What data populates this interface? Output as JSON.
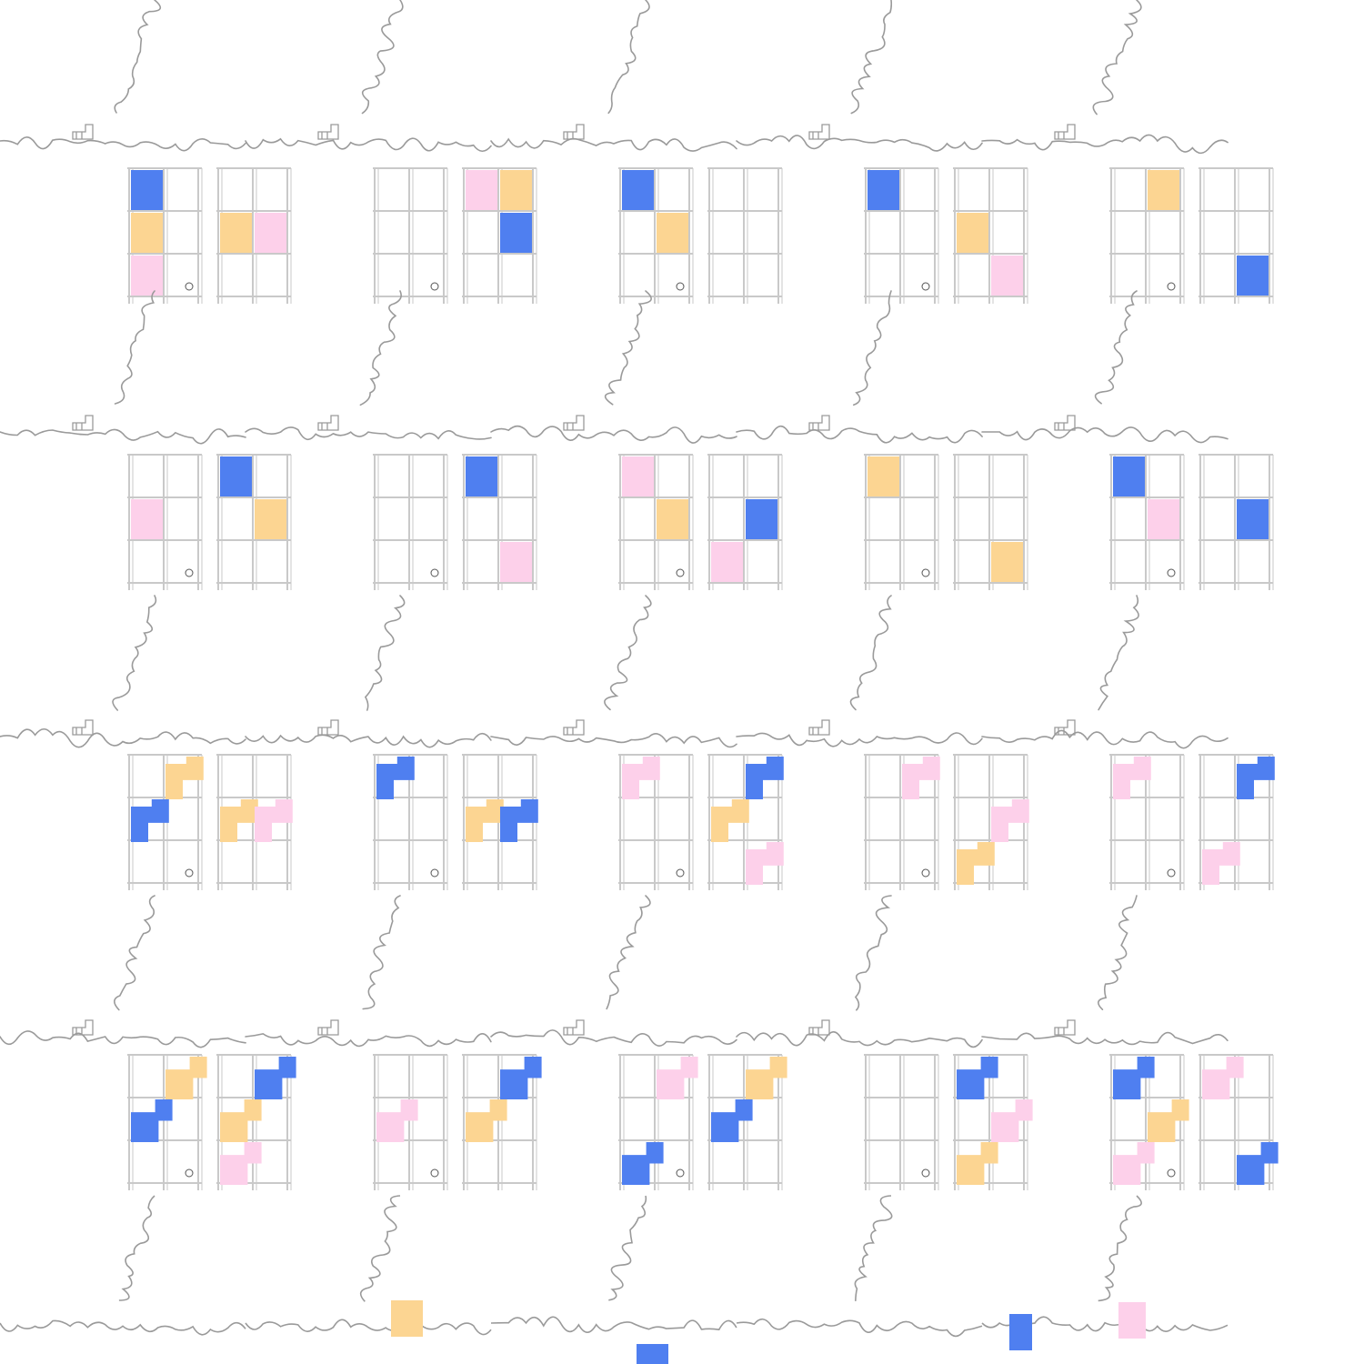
{
  "pattern": {
    "description_visible_text": "",
    "colors": {
      "background": "#ffffff",
      "line": "#9a9a9a",
      "grid_line": "#c9c9c9",
      "blue": "#4f7ff0",
      "orange": "#fcd592",
      "pink": "#fdd0ea"
    },
    "rows": [
      {
        "variant": "squares",
        "tiles": [
          {
            "left": [
              [
                "blue",
                "",
                ""
              ],
              [
                "orange",
                "",
                ""
              ],
              [
                "pink",
                "",
                ""
              ]
            ],
            "right": [
              [
                "",
                "",
                ""
              ],
              [
                "orange",
                "pink",
                ""
              ],
              [
                "",
                "",
                ""
              ]
            ]
          },
          {
            "left": [
              [
                "",
                "",
                ""
              ],
              [
                "",
                "",
                ""
              ],
              [
                "",
                "",
                ""
              ]
            ],
            "right": [
              [
                "pink",
                "orange",
                ""
              ],
              [
                "",
                "blue",
                ""
              ],
              [
                "",
                "",
                ""
              ]
            ]
          },
          {
            "left": [
              [
                "blue",
                "",
                ""
              ],
              [
                "",
                "orange",
                ""
              ],
              [
                "",
                "",
                ""
              ]
            ],
            "right": [
              [
                "",
                "",
                ""
              ],
              [
                "",
                "",
                ""
              ],
              [
                "",
                "",
                ""
              ]
            ]
          },
          {
            "left": [
              [
                "blue",
                "",
                ""
              ],
              [
                "",
                "",
                ""
              ],
              [
                "",
                "",
                ""
              ]
            ],
            "right": [
              [
                "",
                "",
                ""
              ],
              [
                "orange",
                "",
                ""
              ],
              [
                "",
                "pink",
                ""
              ]
            ]
          },
          {
            "left": [
              [
                "",
                "orange",
                ""
              ],
              [
                "",
                "",
                ""
              ],
              [
                "",
                "",
                ""
              ]
            ],
            "right": [
              [
                "",
                "",
                ""
              ],
              [
                "",
                "",
                ""
              ],
              [
                "",
                "blue",
                ""
              ]
            ]
          }
        ]
      },
      {
        "variant": "squares",
        "tiles": [
          {
            "left": [
              [
                "",
                "",
                ""
              ],
              [
                "pink",
                "",
                ""
              ],
              [
                "",
                "",
                ""
              ]
            ],
            "right": [
              [
                "blue",
                "",
                ""
              ],
              [
                "",
                "orange",
                ""
              ],
              [
                "",
                "",
                ""
              ]
            ]
          },
          {
            "left": [
              [
                "",
                "",
                ""
              ],
              [
                "",
                "",
                ""
              ],
              [
                "",
                "",
                ""
              ]
            ],
            "right": [
              [
                "blue",
                "",
                ""
              ],
              [
                "",
                "",
                ""
              ],
              [
                "",
                "pink",
                ""
              ]
            ]
          },
          {
            "left": [
              [
                "pink",
                "",
                ""
              ],
              [
                "",
                "orange",
                ""
              ],
              [
                "",
                "",
                ""
              ]
            ],
            "right": [
              [
                "",
                "",
                ""
              ],
              [
                "",
                "blue",
                ""
              ],
              [
                "pink",
                "",
                ""
              ]
            ]
          },
          {
            "left": [
              [
                "orange",
                "",
                ""
              ],
              [
                "",
                "",
                ""
              ],
              [
                "",
                "",
                ""
              ]
            ],
            "right": [
              [
                "",
                "",
                ""
              ],
              [
                "",
                "",
                ""
              ],
              [
                "",
                "orange",
                ""
              ]
            ]
          },
          {
            "left": [
              [
                "blue",
                "",
                ""
              ],
              [
                "",
                "pink",
                ""
              ],
              [
                "",
                "",
                ""
              ]
            ],
            "right": [
              [
                "",
                "",
                ""
              ],
              [
                "",
                "blue",
                ""
              ],
              [
                "",
                "",
                ""
              ]
            ]
          }
        ]
      },
      {
        "variant": "zigzag",
        "tiles": [
          {
            "left": [
              [
                "",
                "orange",
                ""
              ],
              [
                "blue",
                "",
                ""
              ],
              [
                "",
                "",
                ""
              ]
            ],
            "right": [
              [
                "",
                "",
                ""
              ],
              [
                "orange",
                "pink",
                ""
              ],
              [
                "",
                "",
                ""
              ]
            ]
          },
          {
            "left": [
              [
                "blue",
                "",
                ""
              ],
              [
                "",
                "",
                ""
              ],
              [
                "",
                "",
                ""
              ]
            ],
            "right": [
              [
                "",
                "",
                ""
              ],
              [
                "orange",
                "blue",
                ""
              ],
              [
                "",
                "",
                ""
              ]
            ]
          },
          {
            "left": [
              [
                "pink",
                "",
                ""
              ],
              [
                "",
                "",
                ""
              ],
              [
                "",
                "",
                ""
              ]
            ],
            "right": [
              [
                "",
                "blue",
                ""
              ],
              [
                "orange",
                "",
                ""
              ],
              [
                "",
                "pink",
                ""
              ]
            ]
          },
          {
            "left": [
              [
                "",
                "pink",
                ""
              ],
              [
                "",
                "",
                ""
              ],
              [
                "",
                "",
                ""
              ]
            ],
            "right": [
              [
                "",
                "",
                ""
              ],
              [
                "",
                "pink",
                ""
              ],
              [
                "orange",
                "",
                ""
              ]
            ]
          },
          {
            "left": [
              [
                "pink",
                "",
                ""
              ],
              [
                "",
                "",
                ""
              ],
              [
                "",
                "",
                ""
              ]
            ],
            "right": [
              [
                "",
                "blue",
                ""
              ],
              [
                "",
                "",
                ""
              ],
              [
                "pink",
                "",
                ""
              ]
            ]
          }
        ]
      },
      {
        "variant": "stairs",
        "tiles": [
          {
            "left": [
              [
                "",
                "orange",
                ""
              ],
              [
                "blue",
                "",
                ""
              ],
              [
                "",
                "",
                ""
              ]
            ],
            "right": [
              [
                "",
                "blue",
                ""
              ],
              [
                "orange",
                "",
                ""
              ],
              [
                "pink",
                "",
                ""
              ]
            ]
          },
          {
            "left": [
              [
                "",
                "",
                ""
              ],
              [
                "pink",
                "",
                ""
              ],
              [
                "",
                "",
                ""
              ]
            ],
            "right": [
              [
                "",
                "blue",
                ""
              ],
              [
                "orange",
                "",
                ""
              ],
              [
                "",
                "",
                ""
              ]
            ]
          },
          {
            "left": [
              [
                "",
                "pink",
                ""
              ],
              [
                "",
                "",
                ""
              ],
              [
                "blue",
                "",
                ""
              ]
            ],
            "right": [
              [
                "",
                "orange",
                ""
              ],
              [
                "blue",
                "",
                ""
              ],
              [
                "",
                "",
                ""
              ]
            ]
          },
          {
            "left": [
              [
                "",
                "",
                ""
              ],
              [
                "",
                "",
                ""
              ],
              [
                "",
                "",
                ""
              ]
            ],
            "right": [
              [
                "blue",
                "",
                ""
              ],
              [
                "",
                "pink",
                ""
              ],
              [
                "orange",
                "",
                ""
              ]
            ]
          },
          {
            "left": [
              [
                "blue",
                "",
                ""
              ],
              [
                "",
                "orange",
                ""
              ],
              [
                "pink",
                "",
                ""
              ]
            ],
            "right": [
              [
                "pink",
                "",
                ""
              ],
              [
                "",
                "",
                ""
              ],
              [
                "",
                "blue",
                ""
              ]
            ]
          }
        ]
      }
    ]
  }
}
